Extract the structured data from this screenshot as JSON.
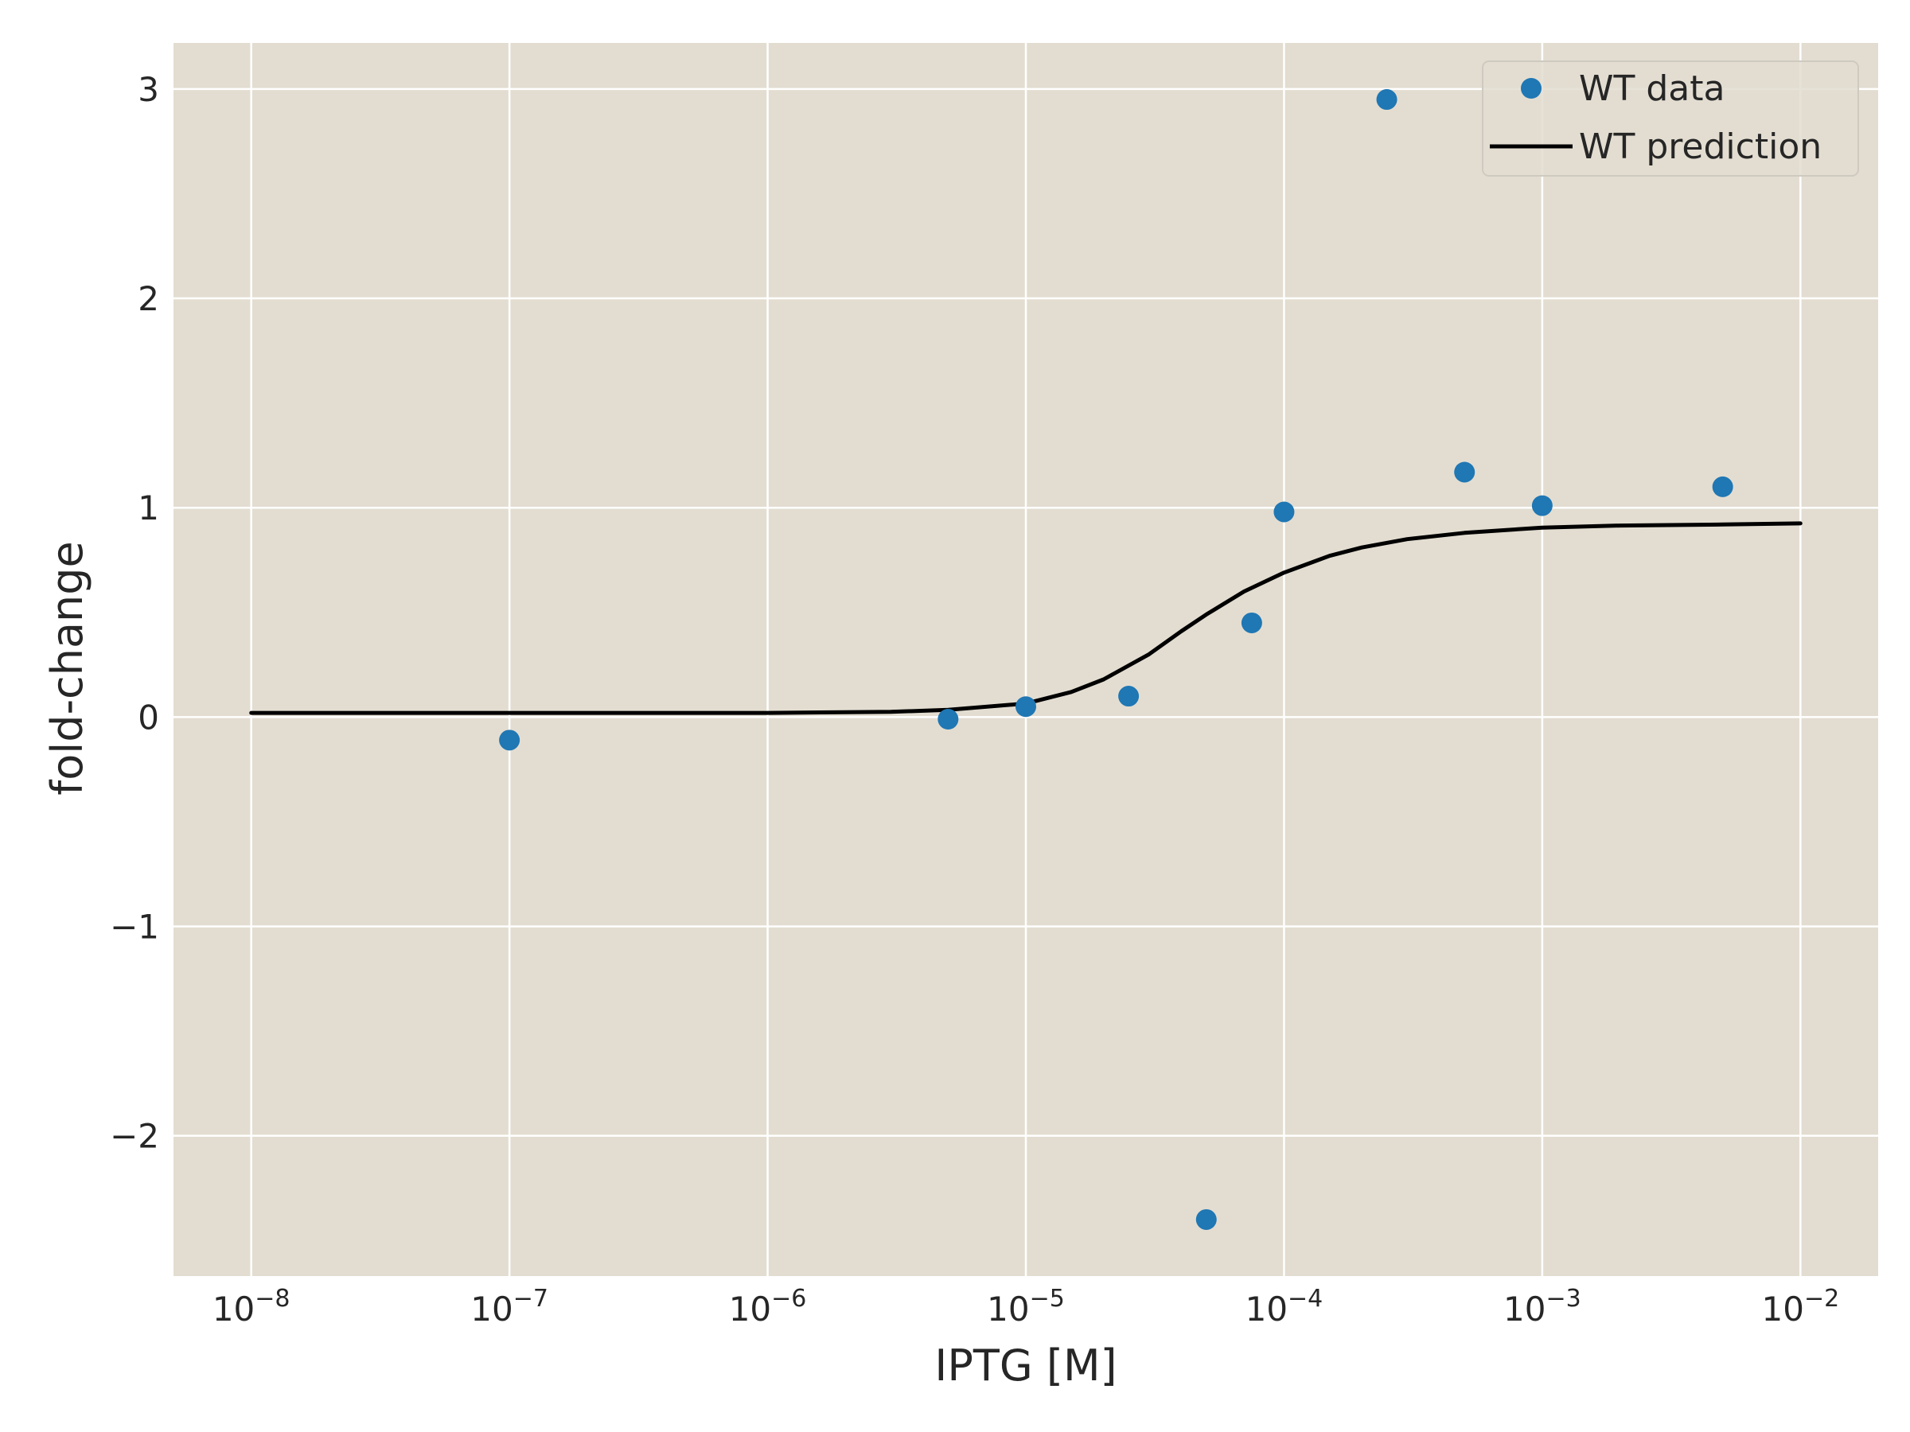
{
  "chart_data": {
    "type": "scatter",
    "xlabel": "IPTG [M]",
    "ylabel": "fold-change",
    "xscale": "log",
    "xlim": [
      5e-09,
      0.02
    ],
    "ylim": [
      -2.67,
      3.22
    ],
    "x_ticks": [
      1e-08,
      1e-07,
      1e-06,
      1e-05,
      0.0001,
      0.001,
      0.01
    ],
    "x_tick_labels": [
      {
        "base": "10",
        "exp": "−8"
      },
      {
        "base": "10",
        "exp": "−7"
      },
      {
        "base": "10",
        "exp": "−6"
      },
      {
        "base": "10",
        "exp": "−5"
      },
      {
        "base": "10",
        "exp": "−4"
      },
      {
        "base": "10",
        "exp": "−3"
      },
      {
        "base": "10",
        "exp": "−2"
      }
    ],
    "y_ticks": [
      -2,
      -1,
      0,
      1,
      2,
      3
    ],
    "y_tick_labels": [
      "−2",
      "−1",
      "0",
      "1",
      "2",
      "3"
    ],
    "grid": true,
    "background": "#e3ddd1",
    "legend_position": "top-right",
    "series": [
      {
        "name": "WT data",
        "kind": "scatter",
        "color": "#1f77b4",
        "x": [
          1e-07,
          5e-06,
          1e-05,
          2.5e-05,
          5e-05,
          7.5e-05,
          0.0001,
          0.00025,
          0.0005,
          0.001,
          0.005
        ],
        "y": [
          -0.11,
          -0.01,
          0.05,
          0.1,
          -2.4,
          0.45,
          0.98,
          2.95,
          1.17,
          1.01,
          1.1
        ]
      },
      {
        "name": "WT prediction",
        "kind": "line",
        "color": "#000000",
        "x": [
          1e-08,
          1e-07,
          1e-06,
          3e-06,
          5e-06,
          1e-05,
          1.5e-05,
          2e-05,
          3e-05,
          4e-05,
          5e-05,
          7e-05,
          0.0001,
          0.00015,
          0.0002,
          0.0003,
          0.0005,
          0.001,
          0.002,
          0.005,
          0.01
        ],
        "y": [
          0.02,
          0.02,
          0.02,
          0.025,
          0.035,
          0.065,
          0.12,
          0.18,
          0.3,
          0.41,
          0.49,
          0.6,
          0.69,
          0.77,
          0.81,
          0.85,
          0.88,
          0.905,
          0.915,
          0.92,
          0.925
        ]
      }
    ]
  }
}
